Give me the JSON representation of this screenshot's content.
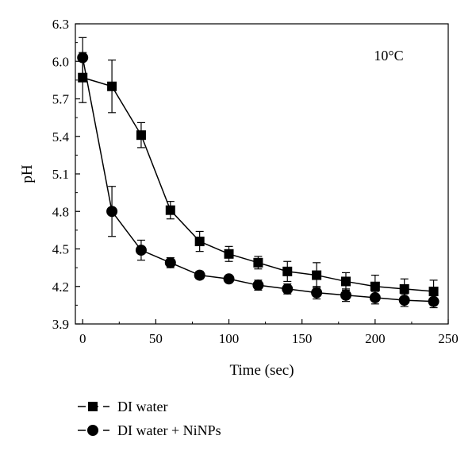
{
  "chart_data": {
    "type": "line",
    "title": "",
    "xlabel": "Time (sec)",
    "ylabel": "pH",
    "xlim": [
      -5,
      250
    ],
    "ylim": [
      3.9,
      6.3
    ],
    "xticks": [
      0,
      50,
      100,
      150,
      200,
      250
    ],
    "yticks": [
      3.9,
      4.2,
      4.5,
      4.8,
      5.1,
      5.4,
      5.7,
      6.0,
      6.3
    ],
    "ytick_labels": [
      "3.9",
      "4.2",
      "4.5",
      "4.8",
      "5.1",
      "5.4",
      "5.7",
      "6.0",
      "6.3"
    ],
    "grid": false,
    "legend_position": "bottom-left, outside plot",
    "annotation": "10°C",
    "x": [
      0,
      20,
      40,
      60,
      80,
      100,
      120,
      140,
      160,
      180,
      200,
      220,
      240
    ],
    "series": [
      {
        "name": "DI water",
        "marker": "square",
        "values": [
          5.87,
          5.8,
          5.41,
          4.81,
          4.56,
          4.46,
          4.39,
          4.32,
          4.29,
          4.24,
          4.2,
          4.18,
          4.16
        ],
        "errors": [
          0.2,
          0.21,
          0.1,
          0.07,
          0.08,
          0.06,
          0.05,
          0.08,
          0.1,
          0.07,
          0.09,
          0.08,
          0.09
        ]
      },
      {
        "name": "DI water + NiNPs",
        "marker": "circle",
        "values": [
          6.03,
          4.8,
          4.49,
          4.39,
          4.29,
          4.26,
          4.21,
          4.18,
          4.15,
          4.13,
          4.11,
          4.09,
          4.08
        ],
        "errors": [
          0.16,
          0.2,
          0.08,
          0.04,
          0.03,
          0.02,
          0.04,
          0.04,
          0.05,
          0.05,
          0.05,
          0.05,
          0.05
        ]
      }
    ],
    "colors": {
      "line": "#000000",
      "marker": "#000000"
    }
  }
}
